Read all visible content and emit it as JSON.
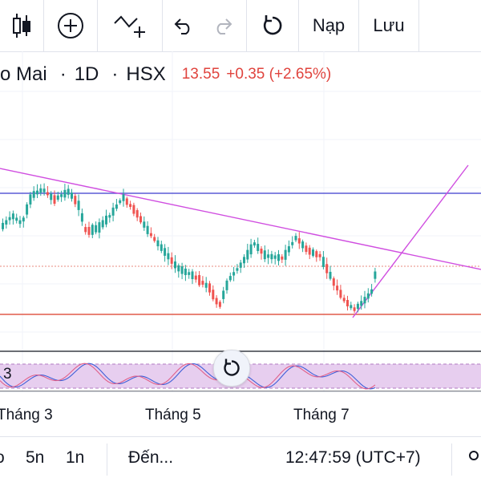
{
  "toolbar": {
    "candles_icon": "candlestick-icon",
    "add_icon": "plus-circle-icon",
    "indicator_icon": "indicator-add-icon",
    "undo_icon": "undo-icon",
    "redo_icon": "redo-icon",
    "reset_icon": "reload-icon",
    "load_label": "Nạp",
    "save_label": "Lưu"
  },
  "legend": {
    "symbol": "o Mai",
    "interval": "1D",
    "exchange": "HSX",
    "price": "13.55",
    "change": "+0.35 (+2.65%)"
  },
  "indicator": {
    "label": "3"
  },
  "time_axis": {
    "labels": [
      "Tháng 3",
      "Tháng 5",
      "Tháng 7"
    ]
  },
  "bottom_bar": {
    "ranges": [
      "o",
      "5n",
      "1n"
    ],
    "goto_label": "Đến...",
    "clock": "12:47:59 (UTC+7)"
  },
  "colors": {
    "up": "#26a69a",
    "down": "#ef5350",
    "trend_line": "#d04ee0",
    "horizontal_line": "#5b5bd6",
    "support_line": "#e05a4a",
    "indicator_band": "#e3c6ec"
  }
}
